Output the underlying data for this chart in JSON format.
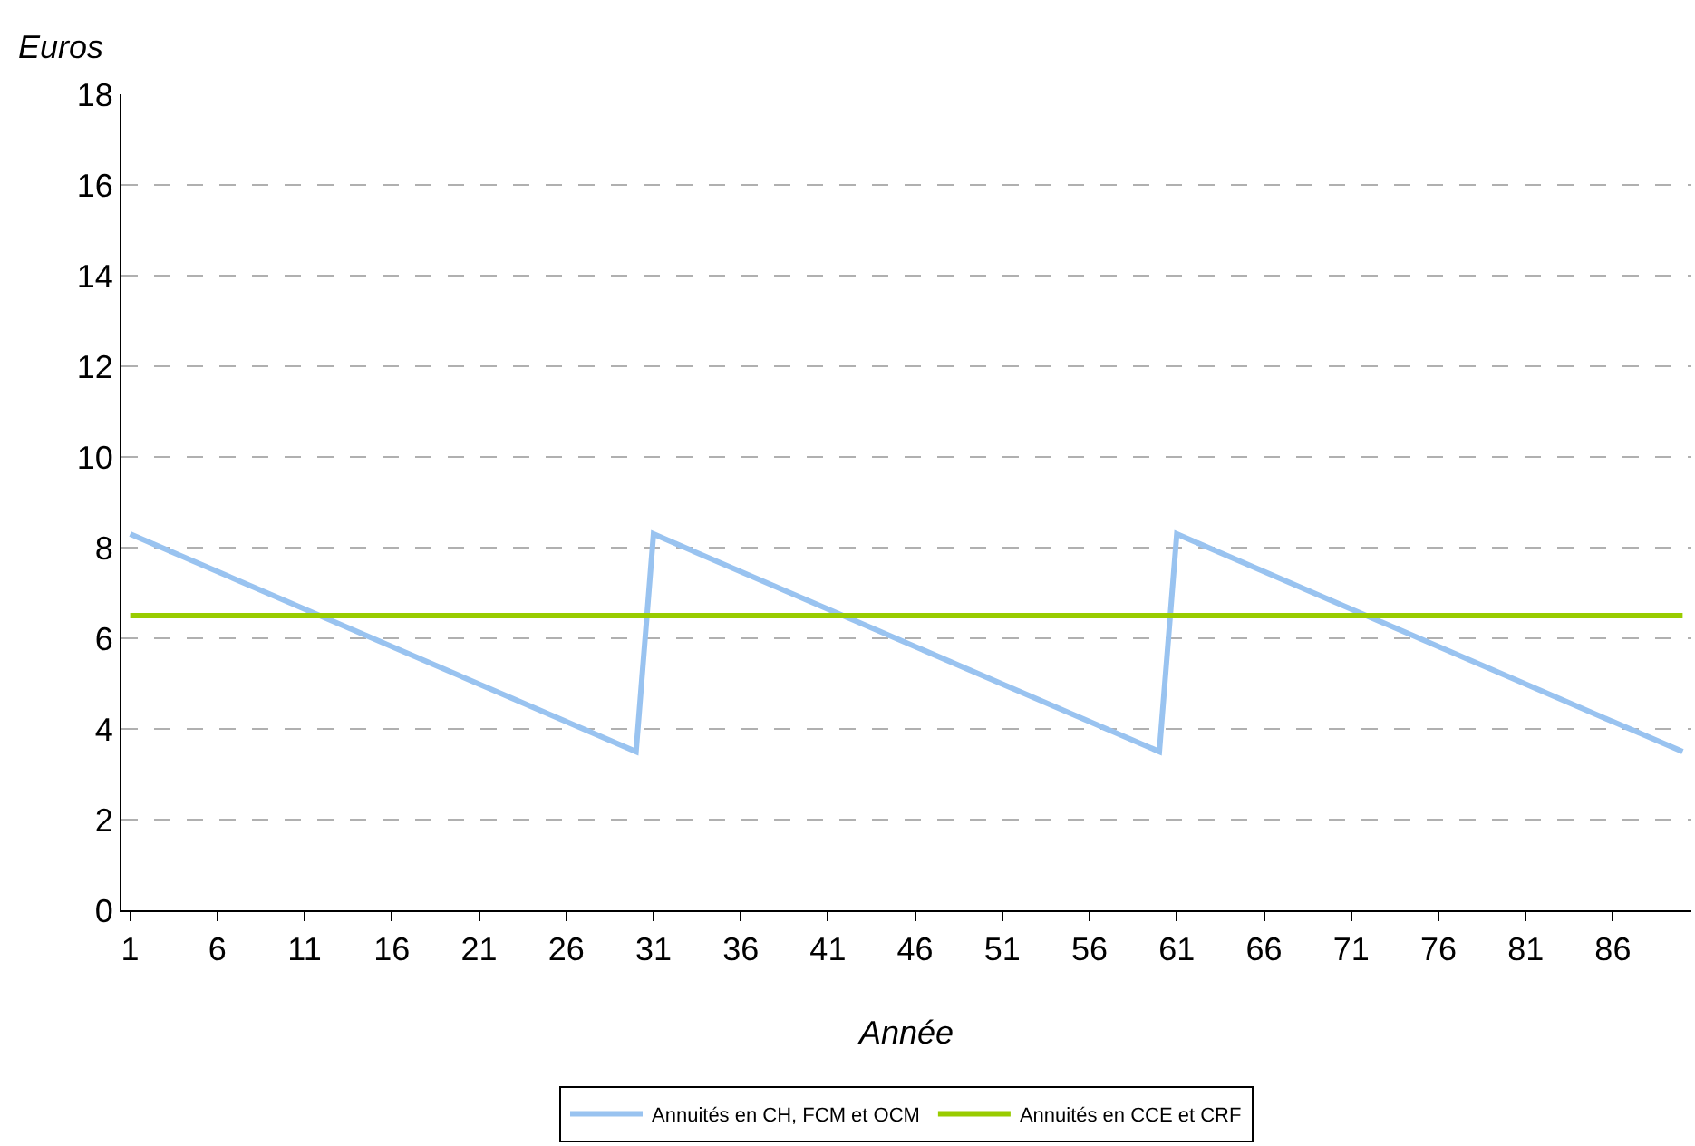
{
  "chart_data": {
    "type": "line",
    "xlabel": "Année",
    "ylabel": "Euros",
    "xlim": [
      0.5,
      90.5
    ],
    "xticks": [
      1,
      6,
      11,
      16,
      21,
      26,
      31,
      36,
      41,
      46,
      51,
      56,
      61,
      66,
      71,
      76,
      81,
      86
    ],
    "ylim": [
      0,
      18
    ],
    "yticks": [
      0,
      2,
      4,
      6,
      8,
      10,
      12,
      14,
      16,
      18
    ],
    "series": [
      {
        "name": "Annuités en CH, FCM et OCM",
        "color": "#99c3f0",
        "x": [
          1,
          30,
          31,
          60,
          61,
          90
        ],
        "values": [
          8.3,
          3.5,
          8.3,
          3.5,
          8.3,
          3.5
        ]
      },
      {
        "name": "Annuités en CCE et CRF",
        "color": "#99cc00",
        "x": [
          1,
          90
        ],
        "values": [
          6.5,
          6.5
        ]
      }
    ],
    "grid": "y",
    "legend": "bottom",
    "marker": "none",
    "line_style": "solid"
  }
}
